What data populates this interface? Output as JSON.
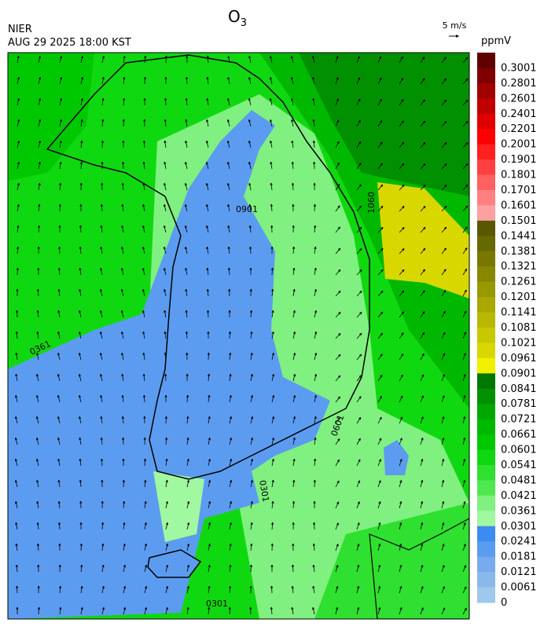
{
  "header": {
    "title": {
      "main": "O",
      "sub": "3"
    },
    "agency": "NIER",
    "datetime": "AUG 29 2025 18:00 KST",
    "wind_scale": "5 m/s"
  },
  "legend": {
    "unit": "ppmV",
    "labels": [
      "0.3001",
      "0.2801",
      "0.2601",
      "0.2401",
      "0.2201",
      "0.2001",
      "0.1901",
      "0.1801",
      "0.1701",
      "0.1601",
      "0.1501",
      "0.1441",
      "0.1381",
      "0.1321",
      "0.1261",
      "0.1201",
      "0.1141",
      "0.1081",
      "0.1021",
      "0.0961",
      "0.0901",
      "0.0841",
      "0.0781",
      "0.0721",
      "0.0661",
      "0.0601",
      "0.0541",
      "0.0481",
      "0.0421",
      "0.0361",
      "0.0301",
      "0.0241",
      "0.0181",
      "0.0121",
      "0.0061",
      "0"
    ],
    "colors": [
      "#600000",
      "#800000",
      "#a00000",
      "#c00000",
      "#e00000",
      "#ff0000",
      "#ff2020",
      "#ff4040",
      "#ff6060",
      "#ff8080",
      "#ffa0a0",
      "#585800",
      "#686800",
      "#787800",
      "#888800",
      "#989800",
      "#a8a800",
      "#b8b800",
      "#c8c800",
      "#d8d800",
      "#f0f000",
      "#007800",
      "#009000",
      "#00a800",
      "#00b800",
      "#00c800",
      "#10d810",
      "#30e030",
      "#50e850",
      "#80f080",
      "#a0f8a0",
      "#3a8cf0",
      "#5c9cf0",
      "#78aaee",
      "#8ab8ea",
      "#9ec8ec"
    ]
  },
  "map": {
    "contour_labels": [
      "0361",
      "0901",
      "0301",
      "0601",
      "0301",
      "1060"
    ]
  }
}
